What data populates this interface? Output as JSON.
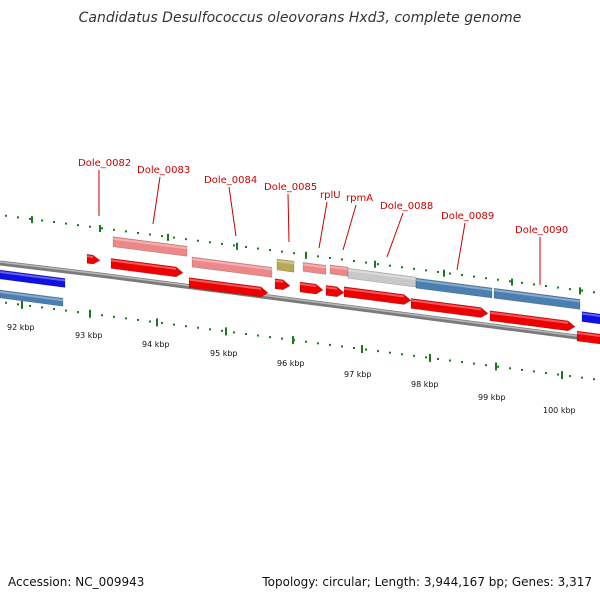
{
  "title": "Candidatus Desulfococcus oleovorans Hxd3, complete genome",
  "footer": {
    "accession": "Accession: NC_009943",
    "topology": "Topology: circular; Length: 3,944,167 bp; Genes: 3,317"
  },
  "colors": {
    "label": "#cc0000",
    "cds_forward": "#ee0000",
    "cds_light": "#ee8888",
    "cog_blue": "#1010e0",
    "steel_blue": "#4a7fb0",
    "gray_gene": "#c8c8c8",
    "olive_gene": "#b8a858",
    "backbone": "#808080",
    "tick": "#1a7a1a"
  },
  "gene_labels": [
    {
      "id": "g82",
      "text": "Dole_0082"
    },
    {
      "id": "g83",
      "text": "Dole_0083"
    },
    {
      "id": "g84",
      "text": "Dole_0084"
    },
    {
      "id": "g85",
      "text": "Dole_0085"
    },
    {
      "id": "rplu",
      "text": "rplU"
    },
    {
      "id": "rpma",
      "text": "rpmA"
    },
    {
      "id": "g88",
      "text": "Dole_0088"
    },
    {
      "id": "g89",
      "text": "Dole_0089"
    },
    {
      "id": "g90",
      "text": "Dole_0090"
    }
  ],
  "kbp_labels": [
    "92 kbp",
    "93 kbp",
    "94 kbp",
    "95 kbp",
    "96 kbp",
    "97 kbp",
    "98 kbp",
    "99 kbp",
    "100 kbp"
  ]
}
